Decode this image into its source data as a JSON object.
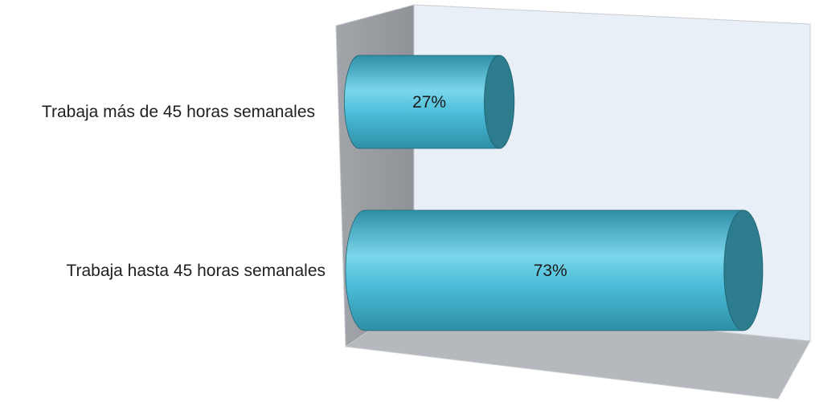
{
  "chart_data": {
    "type": "bar",
    "orientation": "horizontal",
    "style": "3d-cylinder",
    "categories": [
      "Trabaja más de 45 horas semanales",
      "Trabaja hasta 45 horas semanales"
    ],
    "values": [
      27,
      73
    ],
    "data_labels": [
      "27%",
      "73%"
    ],
    "title": "",
    "xlabel": "",
    "ylabel": "",
    "xlim": [
      0,
      100
    ],
    "grid": false,
    "legend": "none",
    "colors": {
      "bar_body": "#4bbdd8",
      "bar_highlight": "#7ad6ea",
      "bar_shadow": "#2f8fa7",
      "bar_end": "#2e7d8e",
      "bar_end_outline": "#1f6676",
      "back_wall": "#e8eff6",
      "side_wall": "#9ea1a6",
      "floor": "#b5b8bd",
      "wall_outline": "#c9ccd0"
    }
  }
}
